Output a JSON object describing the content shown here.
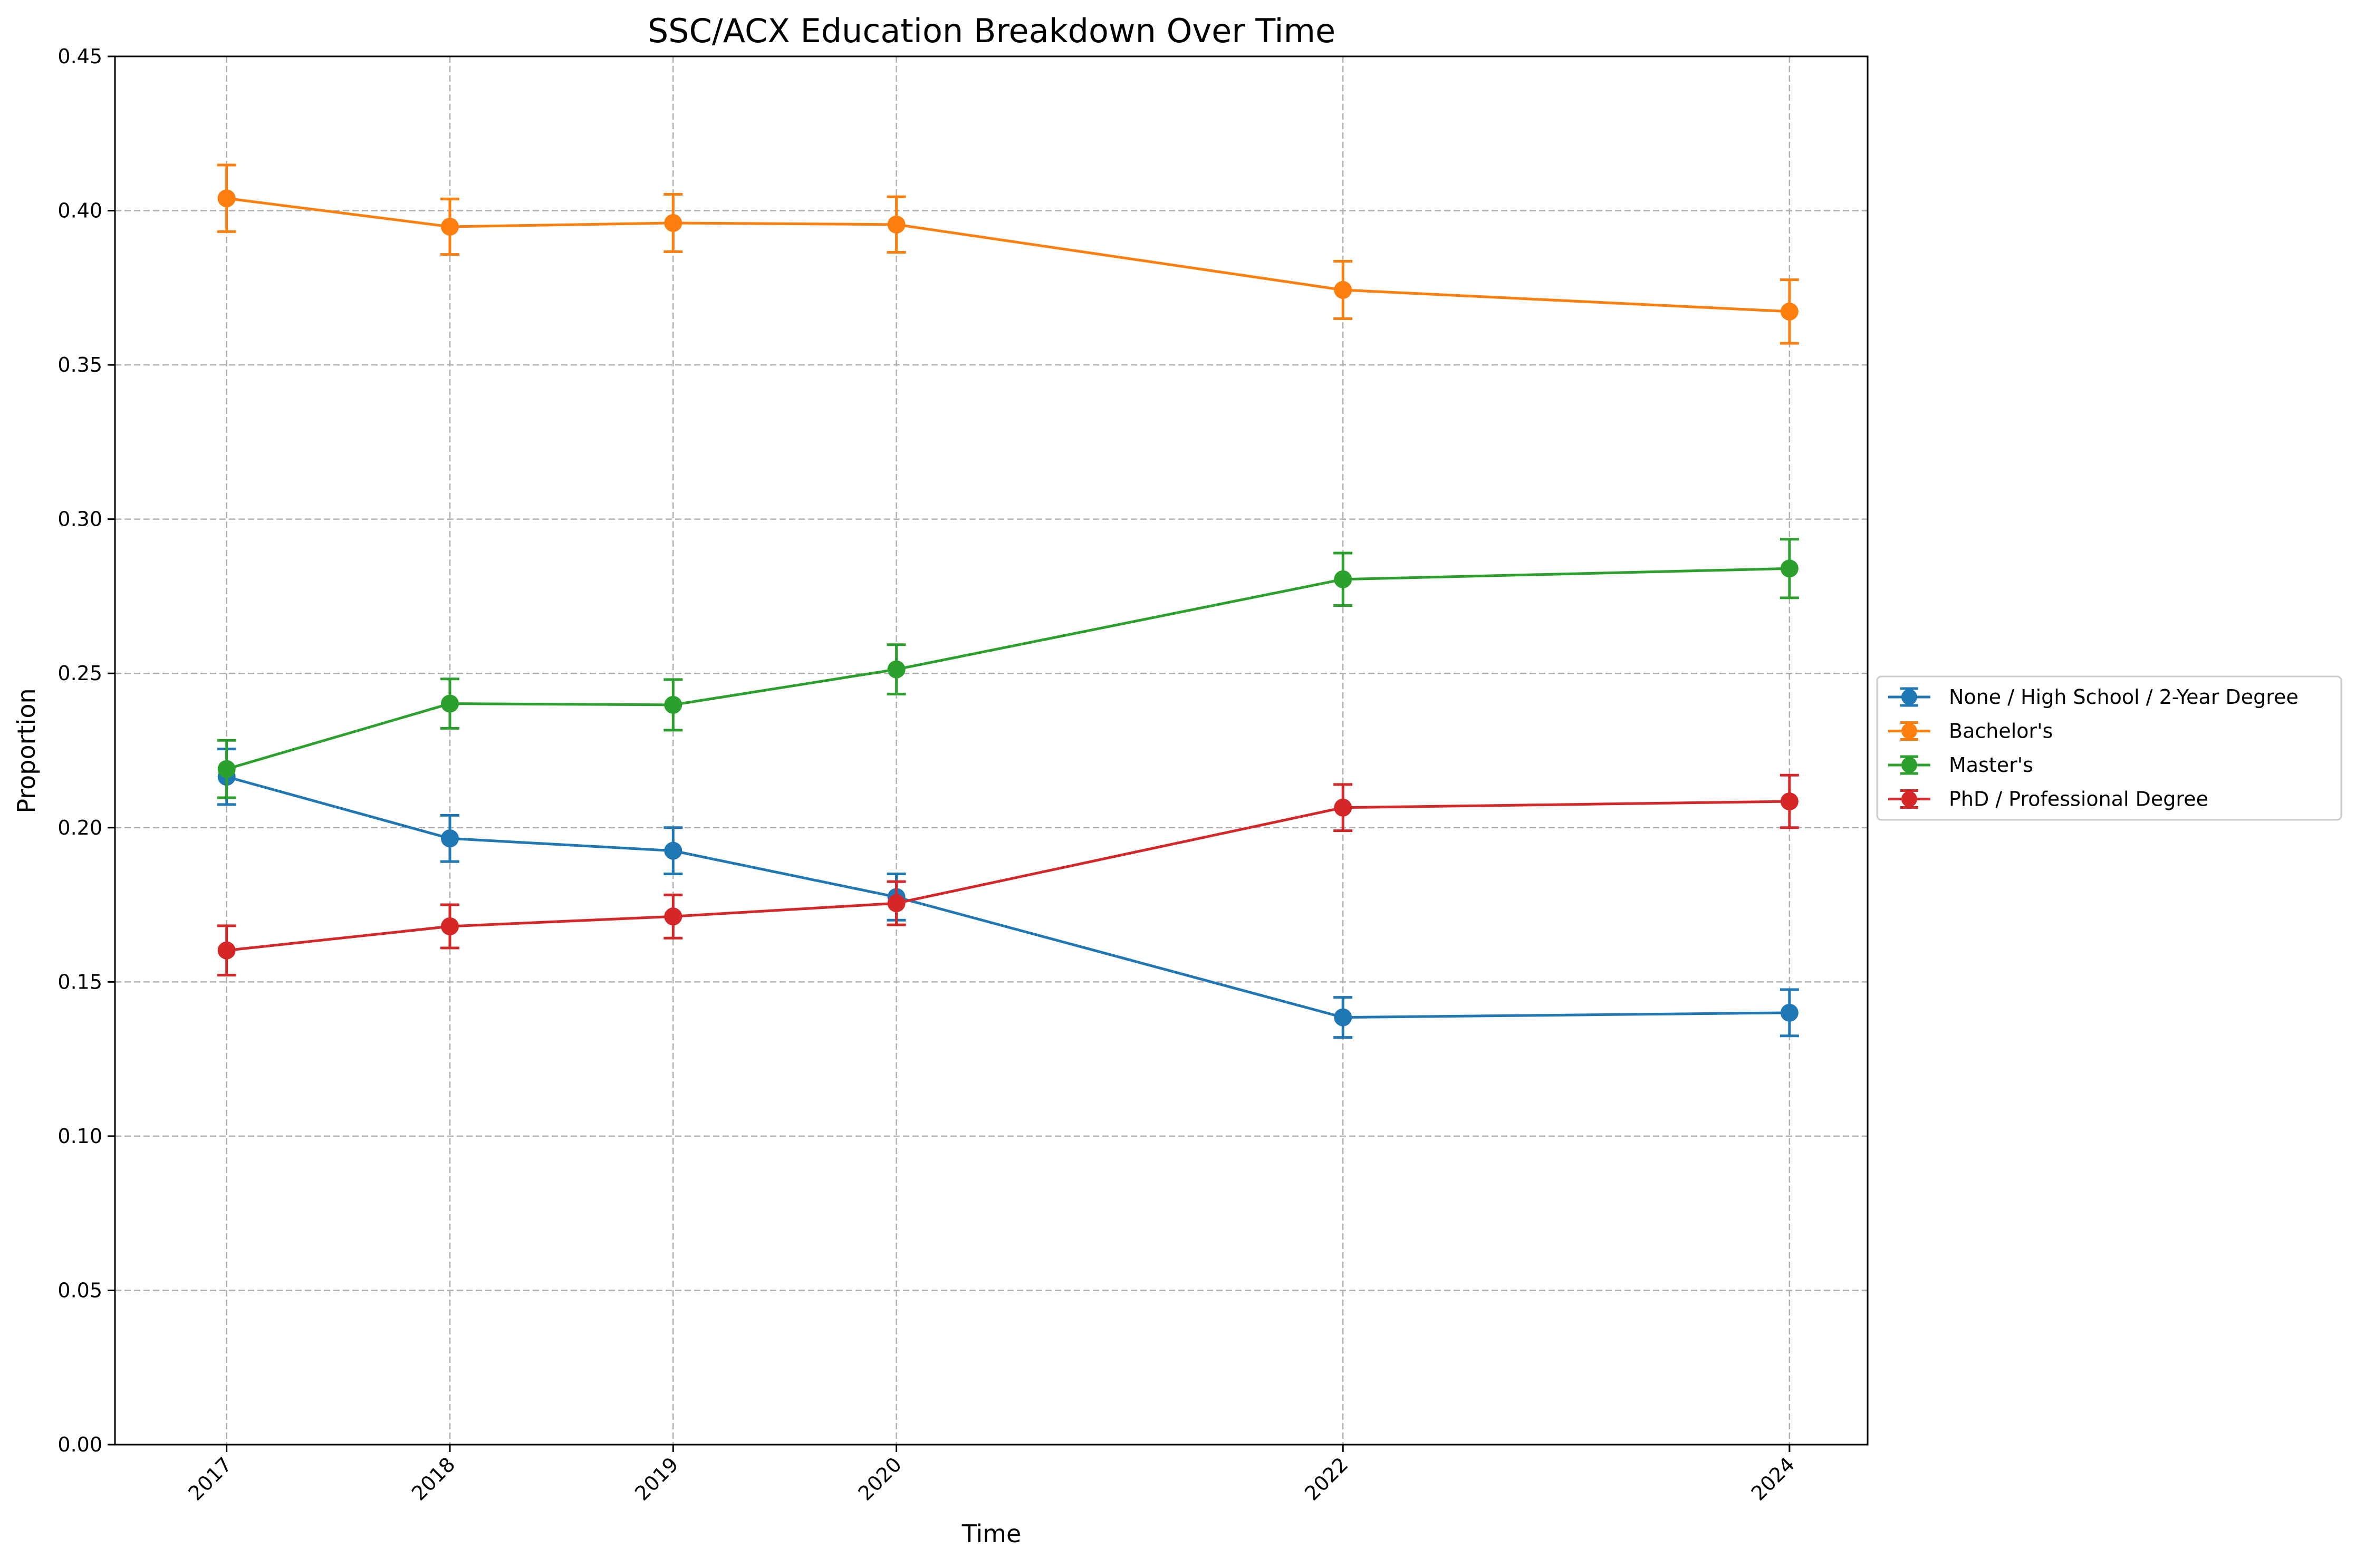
{
  "chart_data": {
    "type": "line",
    "title": "SSC/ACX Education Breakdown Over Time",
    "xlabel": "Time",
    "ylabel": "Proportion",
    "x": [
      2017,
      2018,
      2019,
      2020,
      2022,
      2024
    ],
    "x_tick_labels": [
      "2017",
      "2018",
      "2019",
      "2020",
      "2022",
      "2024"
    ],
    "ylim": [
      0.0,
      0.45
    ],
    "y_ticks": [
      0.0,
      0.05,
      0.1,
      0.15,
      0.2,
      0.25,
      0.3,
      0.35,
      0.4,
      0.45
    ],
    "y_tick_labels": [
      "0.00",
      "0.05",
      "0.10",
      "0.15",
      "0.20",
      "0.25",
      "0.30",
      "0.35",
      "0.40",
      "0.45"
    ],
    "grid": true,
    "legend_position": "center-right outside",
    "series": [
      {
        "name": "None / High School / 2-Year Degree",
        "color": "#1f77b4",
        "values": [
          0.2165,
          0.1965,
          0.1925,
          0.1775,
          0.1385,
          0.14
        ],
        "errors": [
          0.009,
          0.0075,
          0.0075,
          0.0075,
          0.0065,
          0.0075
        ]
      },
      {
        "name": "Bachelor's",
        "color": "#ff7f0e",
        "values": [
          0.404,
          0.3948,
          0.396,
          0.3955,
          0.3743,
          0.3673
        ],
        "errors": [
          0.0108,
          0.009,
          0.0093,
          0.009,
          0.0093,
          0.0103
        ]
      },
      {
        "name": "Master's",
        "color": "#2ca02c",
        "values": [
          0.219,
          0.2402,
          0.2398,
          0.2513,
          0.2805,
          0.284
        ],
        "errors": [
          0.0093,
          0.008,
          0.0082,
          0.008,
          0.0085,
          0.0095
        ]
      },
      {
        "name": "PhD / Professional Degree",
        "color": "#d62728",
        "values": [
          0.1602,
          0.168,
          0.1712,
          0.1755,
          0.2065,
          0.2085
        ],
        "errors": [
          0.008,
          0.007,
          0.007,
          0.007,
          0.0075,
          0.0085
        ]
      }
    ]
  }
}
